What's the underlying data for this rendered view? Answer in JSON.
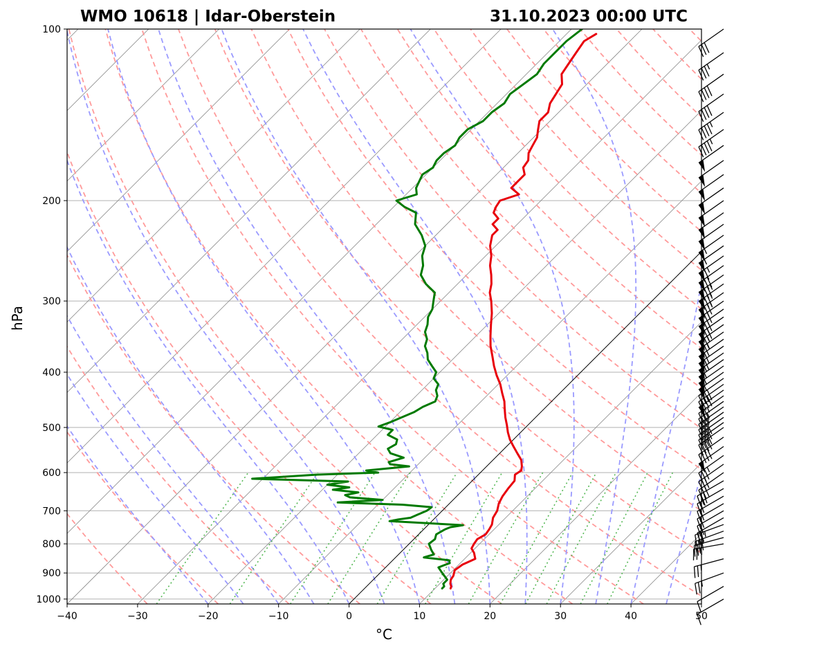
{
  "chart_data": {
    "type": "line",
    "title_left": "WMO 10618 | Idar-Oberstein",
    "title_right": "31.10.2023 00:00 UTC",
    "xlabel": "°C",
    "ylabel": "hPa",
    "xlim": [
      -40,
      50
    ],
    "ylim": [
      1020,
      100
    ],
    "y_scale": "log",
    "skew": true,
    "x_ticks": [
      -40,
      -30,
      -20,
      -10,
      0,
      10,
      20,
      30,
      40,
      50
    ],
    "x_tick_labels": [
      "−40",
      "−30",
      "−20",
      "−10",
      "0",
      "10",
      "20",
      "30",
      "40",
      "50"
    ],
    "y_ticks": [
      1000,
      900,
      800,
      700,
      600,
      500,
      400,
      300,
      200,
      100
    ],
    "y_tick_labels": [
      "1000",
      "900",
      "800",
      "700",
      "600",
      "500",
      "400",
      "300",
      "200",
      "100"
    ],
    "grid": true,
    "colors": {
      "temperature": "#e8000b",
      "dewpoint": "#007a00",
      "dry_adiabats": "#ff9a9a",
      "moist_adiabats": "#9a9aff",
      "mixing_ratio": "#55b855",
      "isotherms": "#888888",
      "grid": "#b0b0b0",
      "zero_isotherm": "#000000"
    },
    "series": [
      {
        "key": "temperature",
        "pressure": [
          958,
          950,
          940,
          925,
          910,
          890,
          870,
          850,
          830,
          815,
          800,
          785,
          770,
          755,
          740,
          720,
          700,
          680,
          660,
          640,
          620,
          605,
          595,
          585,
          570,
          555,
          540,
          525,
          510,
          495,
          480,
          465,
          450,
          435,
          420,
          405,
          390,
          375,
          360,
          345,
          330,
          315,
          300,
          290,
          280,
          270,
          260,
          250,
          240,
          230,
          225,
          220,
          215,
          210,
          205,
          200,
          195,
          190,
          185,
          180,
          175,
          170,
          165,
          160,
          155,
          150,
          145,
          140,
          135,
          130,
          125,
          120,
          115,
          110,
          105,
          102
        ],
        "values": [
          12.2,
          12.0,
          11.5,
          11.0,
          10.8,
          10.2,
          10.5,
          11.5,
          10.5,
          9.5,
          9.2,
          9.0,
          9.5,
          9.3,
          9.0,
          8.2,
          7.8,
          7.0,
          6.5,
          6.2,
          6.0,
          5.2,
          5.5,
          5.0,
          4.0,
          2.5,
          1.0,
          -0.5,
          -1.8,
          -3.0,
          -4.3,
          -5.5,
          -6.7,
          -8.2,
          -9.7,
          -11.5,
          -13.2,
          -14.8,
          -16.5,
          -18.0,
          -19.5,
          -21.0,
          -22.8,
          -24.2,
          -25.2,
          -26.5,
          -28.0,
          -29.2,
          -30.8,
          -32.0,
          -32.0,
          -33.5,
          -33.5,
          -35.0,
          -35.5,
          -35.8,
          -34.0,
          -36.0,
          -36.0,
          -36.0,
          -37.2,
          -37.5,
          -38.5,
          -39.0,
          -39.5,
          -40.5,
          -41.5,
          -41.5,
          -42.5,
          -43.0,
          -43.5,
          -45.0,
          -45.5,
          -46.0,
          -46.5,
          -45.8
        ]
      },
      {
        "key": "dewpoint",
        "pressure": [
          958,
          950,
          940,
          925,
          910,
          895,
          880,
          872,
          865,
          855,
          845,
          835,
          820,
          800,
          785,
          770,
          755,
          748,
          742,
          730,
          725,
          720,
          712,
          700,
          690,
          683,
          677,
          670,
          663,
          657,
          650,
          643,
          637,
          630,
          622,
          615,
          605,
          600,
          595,
          585,
          580,
          575,
          565,
          555,
          545,
          535,
          525,
          515,
          505,
          498,
          490,
          480,
          470,
          460,
          450,
          440,
          430,
          420,
          410,
          400,
          390,
          380,
          370,
          360,
          350,
          340,
          330,
          320,
          310,
          300,
          290,
          280,
          270,
          260,
          250,
          240,
          230,
          220,
          210,
          205,
          200,
          195,
          190,
          185,
          180,
          175,
          170,
          165,
          160,
          155,
          150,
          145,
          140,
          135,
          130,
          125,
          120,
          115,
          110,
          105,
          100
        ],
        "values": [
          11.0,
          11.0,
          10.5,
          10.5,
          9.5,
          8.5,
          7.5,
          8.0,
          8.5,
          8.0,
          4.0,
          5.0,
          4.0,
          2.8,
          3.0,
          2.5,
          3.0,
          3.5,
          5.0,
          -6.0,
          -5.0,
          -3.5,
          -3.0,
          -2.2,
          -2.0,
          -6.5,
          -16.0,
          -10.0,
          -15.0,
          -16.0,
          -14.5,
          -18.5,
          -16.5,
          -20.0,
          -17.5,
          -31.5,
          -23.0,
          -14.5,
          -16.5,
          -11.0,
          -14.0,
          -14.5,
          -13.0,
          -15.5,
          -16.5,
          -16.0,
          -16.5,
          -18.5,
          -18.5,
          -21.0,
          -20.0,
          -19.0,
          -18.0,
          -17.5,
          -16.5,
          -17.0,
          -18.0,
          -18.5,
          -20.0,
          -20.5,
          -22.0,
          -23.5,
          -24.5,
          -25.8,
          -26.5,
          -27.8,
          -28.5,
          -29.5,
          -30.0,
          -31.0,
          -32.0,
          -34.5,
          -36.5,
          -37.5,
          -39.0,
          -40.0,
          -42.0,
          -44.5,
          -46.0,
          -48.5,
          -50.5,
          -48.5,
          -49.5,
          -50.0,
          -50.5,
          -50.0,
          -50.5,
          -50.5,
          -50.0,
          -50.5,
          -50.5,
          -49.5,
          -49.5,
          -49.0,
          -49.5,
          -49.0,
          -48.5,
          -49.0,
          -49.0,
          -49.0,
          -48.5
        ]
      }
    ],
    "wind_barbs": {
      "pressure": [
        1000,
        950,
        900,
        850,
        800,
        780,
        760,
        740,
        720,
        700,
        680,
        660,
        640,
        620,
        600,
        580,
        560,
        540,
        520,
        500,
        490,
        480,
        470,
        460,
        450,
        440,
        430,
        420,
        410,
        400,
        390,
        380,
        370,
        360,
        350,
        340,
        330,
        320,
        310,
        300,
        290,
        280,
        270,
        260,
        250,
        240,
        230,
        220,
        210,
        200,
        190,
        180,
        170,
        160,
        150,
        140,
        130,
        120,
        110,
        100
      ],
      "speed_kt": [
        10,
        10,
        25,
        25,
        25,
        30,
        30,
        35,
        20,
        20,
        20,
        20,
        25,
        30,
        30,
        30,
        35,
        50,
        40,
        40,
        40,
        40,
        40,
        35,
        35,
        35,
        50,
        40,
        40,
        55,
        55,
        55,
        55,
        60,
        60,
        65,
        65,
        70,
        70,
        70,
        75,
        75,
        75,
        70,
        65,
        55,
        55,
        50,
        50,
        50,
        50,
        50,
        50,
        50,
        45,
        45,
        40,
        40,
        35,
        30
      ],
      "direction_deg": [
        240,
        240,
        250,
        255,
        260,
        255,
        250,
        250,
        240,
        240,
        240,
        240,
        240,
        240,
        235,
        235,
        235,
        235,
        235,
        235,
        235,
        235,
        235,
        235,
        235,
        235,
        235,
        235,
        235,
        235,
        235,
        235,
        235,
        235,
        235,
        235,
        235,
        235,
        235,
        235,
        235,
        235,
        235,
        235,
        235,
        235,
        235,
        235,
        235,
        235,
        235,
        235,
        235,
        235,
        235,
        235,
        235,
        235,
        235,
        235
      ]
    }
  }
}
